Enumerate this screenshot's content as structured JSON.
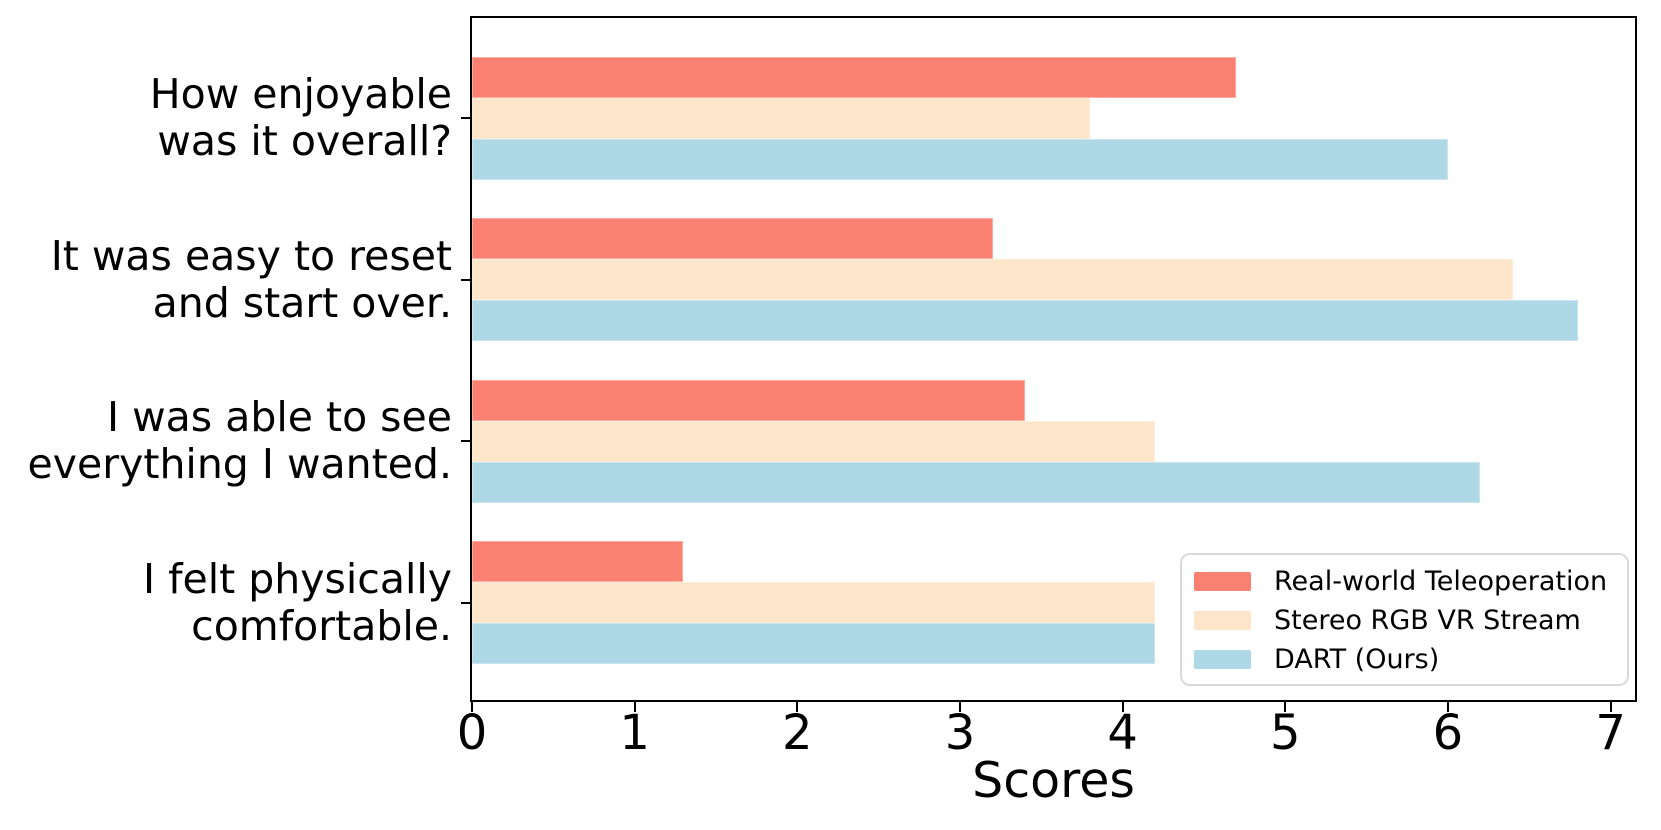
{
  "chart_data": {
    "type": "bar",
    "orientation": "horizontal",
    "xlabel": "Scores",
    "categories": [
      [
        "How enjoyable",
        "was it overall?"
      ],
      [
        "It was easy to reset",
        "and start over."
      ],
      [
        "I was able to see",
        "everything I wanted."
      ],
      [
        "I felt physically",
        "comfortable."
      ]
    ],
    "series": [
      {
        "name": "Real-world Teleoperation",
        "color": "#FA8072",
        "values": [
          4.7,
          3.2,
          3.4,
          1.3
        ]
      },
      {
        "name": "Stereo RGB VR Stream",
        "color": "#FCE5C8",
        "values": [
          3.8,
          6.4,
          4.2,
          4.2
        ]
      },
      {
        "name": "DART (Ours)",
        "color": "#AFD8E6",
        "values": [
          6.0,
          6.8,
          6.2,
          4.2
        ]
      }
    ],
    "x_ticks": [
      0,
      1,
      2,
      3,
      4,
      5,
      6,
      7
    ],
    "xlim": [
      0,
      7.15
    ],
    "grid": false,
    "legend_position": "lower right",
    "axis_color": "#000000",
    "legend_border_color": "#d9d9d9"
  }
}
